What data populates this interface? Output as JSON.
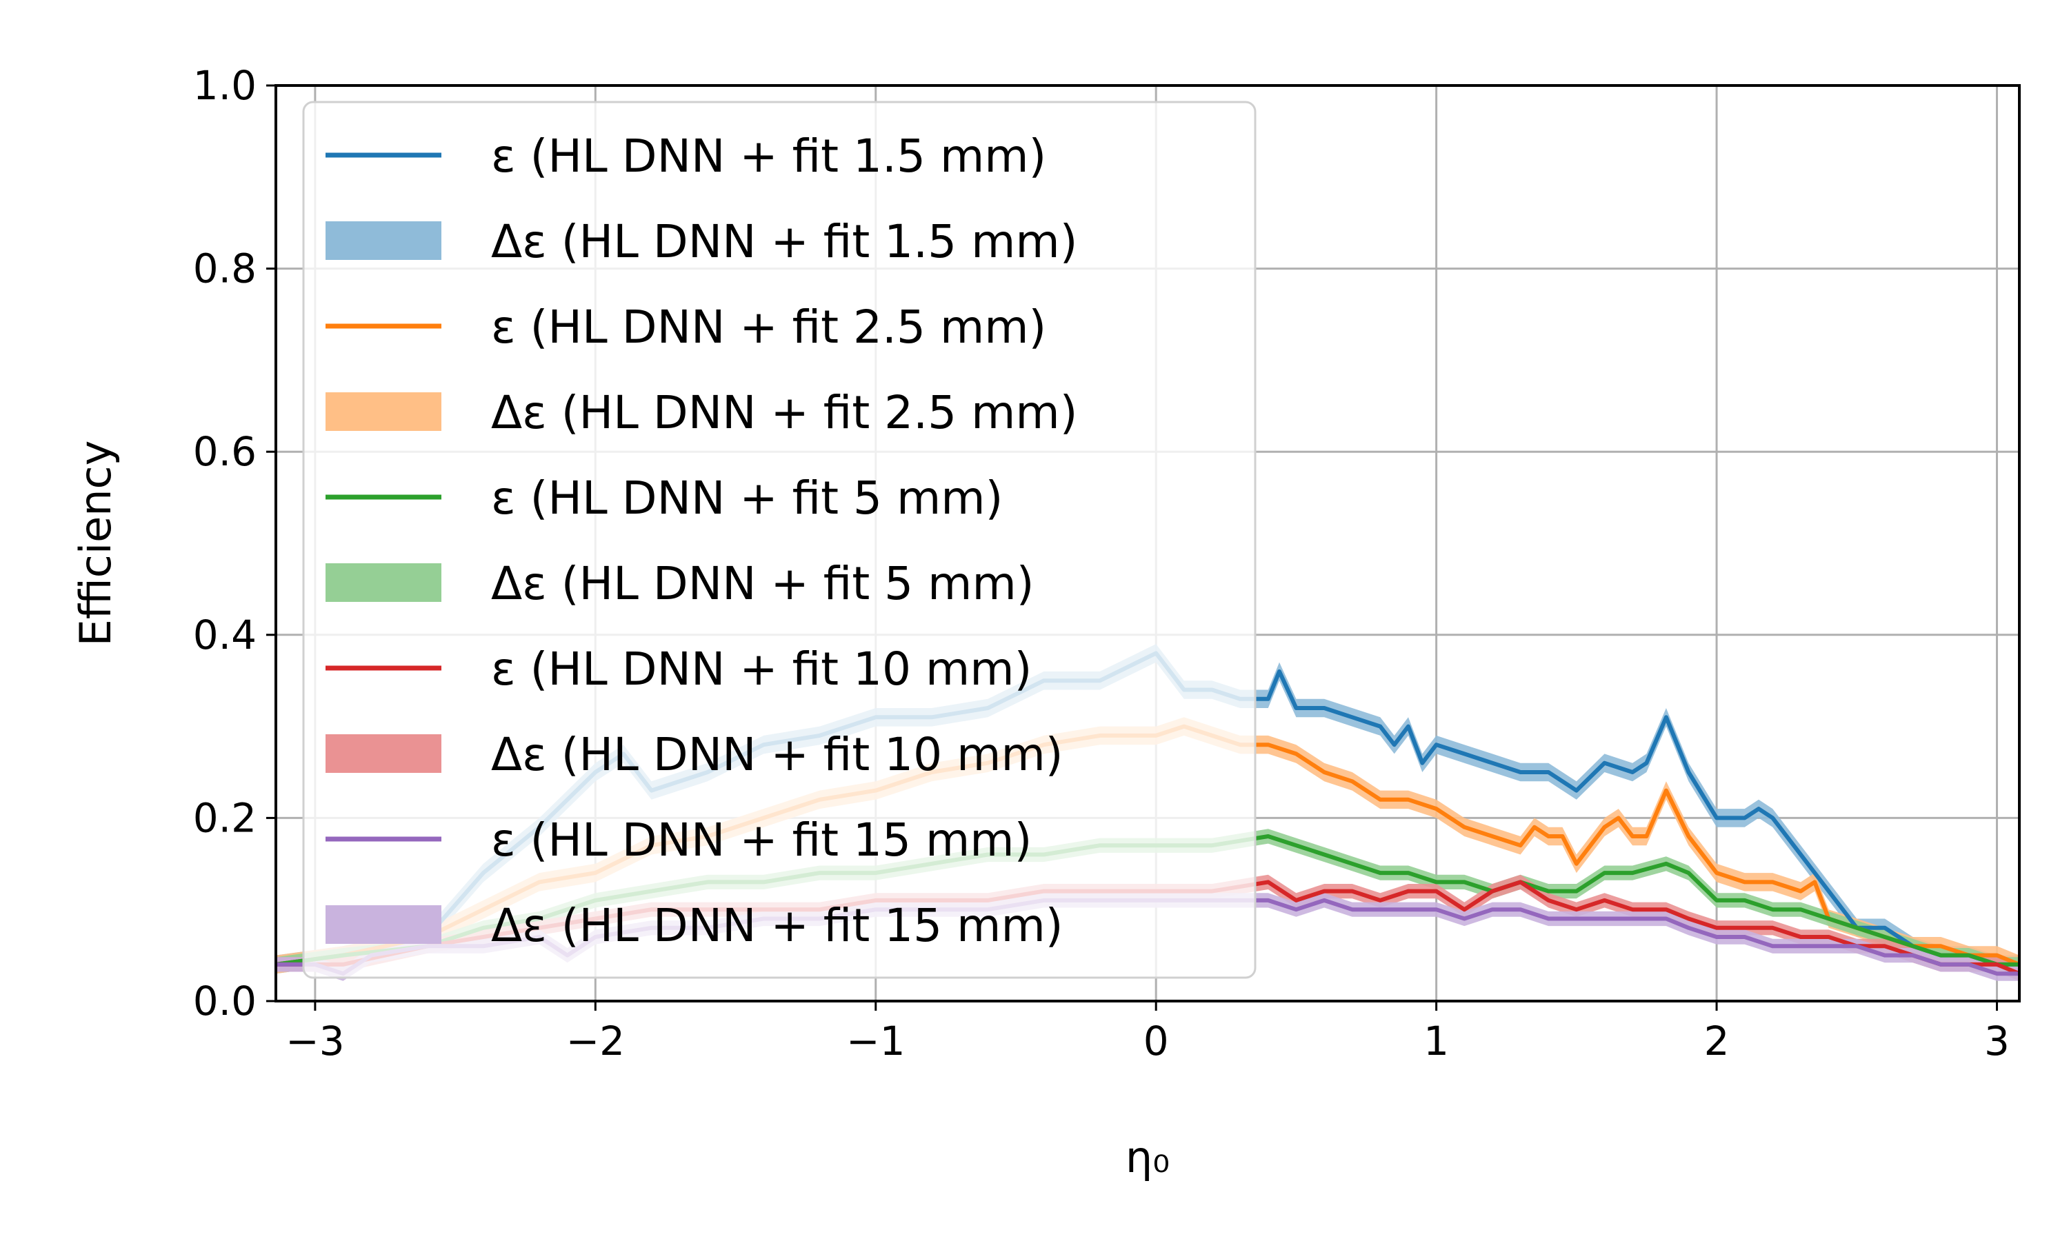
{
  "chart_data": {
    "type": "line",
    "xlabel": "η₀",
    "ylabel": "Efficiency",
    "xlim": [
      -3.14,
      3.08
    ],
    "ylim": [
      0.0,
      1.0
    ],
    "x_ticks": [
      -3,
      -2,
      -1,
      0,
      1,
      2,
      3
    ],
    "x_tick_labels": [
      "−3",
      "−2",
      "−1",
      "0",
      "1",
      "2",
      "3"
    ],
    "y_ticks": [
      0.0,
      0.2,
      0.4,
      0.6,
      0.8,
      1.0
    ],
    "y_tick_labels": [
      "0.0",
      "0.2",
      "0.4",
      "0.6",
      "0.8",
      "1.0"
    ],
    "grid": true,
    "legend_position": "top-left",
    "legend": [
      {
        "label": "ε (HL DNN + fit 1.5 mm)",
        "kind": "line",
        "color": "#1f77b4"
      },
      {
        "label": "Δε (HL DNN + fit 1.5 mm)",
        "kind": "band",
        "color": "#8fbbd9"
      },
      {
        "label": "ε (HL DNN + fit 2.5 mm)",
        "kind": "line",
        "color": "#ff7f0e"
      },
      {
        "label": "Δε (HL DNN + fit 2.5 mm)",
        "kind": "band",
        "color": "#ffbf86"
      },
      {
        "label": "ε (HL DNN + fit 5 mm)",
        "kind": "line",
        "color": "#2ca02c"
      },
      {
        "label": "Δε (HL DNN + fit 5 mm)",
        "kind": "band",
        "color": "#95cf95"
      },
      {
        "label": "ε (HL DNN + fit 10 mm)",
        "kind": "line",
        "color": "#d62728"
      },
      {
        "label": "Δε (HL DNN + fit 10 mm)",
        "kind": "band",
        "color": "#ea9293"
      },
      {
        "label": "ε (HL DNN + fit 15 mm)",
        "kind": "line",
        "color": "#9467bd"
      },
      {
        "label": "Δε (HL DNN + fit 15 mm)",
        "kind": "band",
        "color": "#c9b3de"
      }
    ],
    "series": [
      {
        "name": "ε (HL DNN + fit 1.5 mm)",
        "color": "#1f77b4",
        "band_color": "#8fbbd9",
        "band_halfwidth": 0.01,
        "points": [
          [
            -3.14,
            0.04
          ],
          [
            -2.9,
            0.05
          ],
          [
            -2.6,
            0.07
          ],
          [
            -2.4,
            0.14
          ],
          [
            -2.2,
            0.19
          ],
          [
            -2.0,
            0.25
          ],
          [
            -1.9,
            0.27
          ],
          [
            -1.8,
            0.23
          ],
          [
            -1.6,
            0.25
          ],
          [
            -1.4,
            0.28
          ],
          [
            -1.2,
            0.29
          ],
          [
            -1.0,
            0.31
          ],
          [
            -0.8,
            0.31
          ],
          [
            -0.6,
            0.32
          ],
          [
            -0.4,
            0.35
          ],
          [
            -0.2,
            0.35
          ],
          [
            0.0,
            0.38
          ],
          [
            0.1,
            0.34
          ],
          [
            0.2,
            0.34
          ],
          [
            0.3,
            0.33
          ],
          [
            0.4,
            0.33
          ],
          [
            0.44,
            0.36
          ],
          [
            0.5,
            0.32
          ],
          [
            0.6,
            0.32
          ],
          [
            0.7,
            0.31
          ],
          [
            0.8,
            0.3
          ],
          [
            0.85,
            0.28
          ],
          [
            0.9,
            0.3
          ],
          [
            0.95,
            0.26
          ],
          [
            1.0,
            0.28
          ],
          [
            1.1,
            0.27
          ],
          [
            1.2,
            0.26
          ],
          [
            1.3,
            0.25
          ],
          [
            1.4,
            0.25
          ],
          [
            1.5,
            0.23
          ],
          [
            1.6,
            0.26
          ],
          [
            1.7,
            0.25
          ],
          [
            1.75,
            0.26
          ],
          [
            1.82,
            0.31
          ],
          [
            1.9,
            0.25
          ],
          [
            2.0,
            0.2
          ],
          [
            2.1,
            0.2
          ],
          [
            2.15,
            0.21
          ],
          [
            2.2,
            0.2
          ],
          [
            2.3,
            0.16
          ],
          [
            2.4,
            0.12
          ],
          [
            2.5,
            0.08
          ],
          [
            2.6,
            0.08
          ],
          [
            2.7,
            0.06
          ],
          [
            2.8,
            0.05
          ],
          [
            2.9,
            0.05
          ],
          [
            3.0,
            0.04
          ],
          [
            3.08,
            0.04
          ]
        ]
      },
      {
        "name": "ε (HL DNN + fit 2.5 mm)",
        "color": "#ff7f0e",
        "band_color": "#ffbf86",
        "band_halfwidth": 0.01,
        "points": [
          [
            -3.14,
            0.04
          ],
          [
            -2.9,
            0.05
          ],
          [
            -2.6,
            0.07
          ],
          [
            -2.4,
            0.1
          ],
          [
            -2.2,
            0.13
          ],
          [
            -2.0,
            0.14
          ],
          [
            -1.8,
            0.17
          ],
          [
            -1.6,
            0.18
          ],
          [
            -1.4,
            0.2
          ],
          [
            -1.2,
            0.22
          ],
          [
            -1.0,
            0.23
          ],
          [
            -0.8,
            0.25
          ],
          [
            -0.6,
            0.26
          ],
          [
            -0.4,
            0.28
          ],
          [
            -0.2,
            0.29
          ],
          [
            0.0,
            0.29
          ],
          [
            0.1,
            0.3
          ],
          [
            0.2,
            0.29
          ],
          [
            0.3,
            0.28
          ],
          [
            0.4,
            0.28
          ],
          [
            0.5,
            0.27
          ],
          [
            0.6,
            0.25
          ],
          [
            0.7,
            0.24
          ],
          [
            0.8,
            0.22
          ],
          [
            0.9,
            0.22
          ],
          [
            1.0,
            0.21
          ],
          [
            1.1,
            0.19
          ],
          [
            1.2,
            0.18
          ],
          [
            1.3,
            0.17
          ],
          [
            1.35,
            0.19
          ],
          [
            1.4,
            0.18
          ],
          [
            1.45,
            0.18
          ],
          [
            1.5,
            0.15
          ],
          [
            1.6,
            0.19
          ],
          [
            1.65,
            0.2
          ],
          [
            1.7,
            0.18
          ],
          [
            1.75,
            0.18
          ],
          [
            1.82,
            0.23
          ],
          [
            1.9,
            0.18
          ],
          [
            2.0,
            0.14
          ],
          [
            2.1,
            0.13
          ],
          [
            2.2,
            0.13
          ],
          [
            2.3,
            0.12
          ],
          [
            2.35,
            0.13
          ],
          [
            2.4,
            0.09
          ],
          [
            2.5,
            0.08
          ],
          [
            2.6,
            0.07
          ],
          [
            2.7,
            0.06
          ],
          [
            2.8,
            0.06
          ],
          [
            2.9,
            0.05
          ],
          [
            3.0,
            0.05
          ],
          [
            3.08,
            0.04
          ]
        ]
      },
      {
        "name": "ε (HL DNN + fit 5 mm)",
        "color": "#2ca02c",
        "band_color": "#95cf95",
        "band_halfwidth": 0.008,
        "points": [
          [
            -3.14,
            0.04
          ],
          [
            -2.9,
            0.05
          ],
          [
            -2.6,
            0.06
          ],
          [
            -2.4,
            0.08
          ],
          [
            -2.2,
            0.09
          ],
          [
            -2.0,
            0.11
          ],
          [
            -1.8,
            0.12
          ],
          [
            -1.6,
            0.13
          ],
          [
            -1.4,
            0.13
          ],
          [
            -1.2,
            0.14
          ],
          [
            -1.0,
            0.14
          ],
          [
            -0.8,
            0.15
          ],
          [
            -0.6,
            0.16
          ],
          [
            -0.4,
            0.16
          ],
          [
            -0.2,
            0.17
          ],
          [
            0.0,
            0.17
          ],
          [
            0.2,
            0.17
          ],
          [
            0.4,
            0.18
          ],
          [
            0.5,
            0.17
          ],
          [
            0.6,
            0.16
          ],
          [
            0.7,
            0.15
          ],
          [
            0.8,
            0.14
          ],
          [
            0.9,
            0.14
          ],
          [
            1.0,
            0.13
          ],
          [
            1.1,
            0.13
          ],
          [
            1.2,
            0.12
          ],
          [
            1.3,
            0.13
          ],
          [
            1.4,
            0.12
          ],
          [
            1.5,
            0.12
          ],
          [
            1.6,
            0.14
          ],
          [
            1.7,
            0.14
          ],
          [
            1.82,
            0.15
          ],
          [
            1.9,
            0.14
          ],
          [
            2.0,
            0.11
          ],
          [
            2.1,
            0.11
          ],
          [
            2.2,
            0.1
          ],
          [
            2.3,
            0.1
          ],
          [
            2.4,
            0.09
          ],
          [
            2.5,
            0.08
          ],
          [
            2.6,
            0.07
          ],
          [
            2.7,
            0.06
          ],
          [
            2.8,
            0.05
          ],
          [
            2.9,
            0.05
          ],
          [
            3.0,
            0.04
          ],
          [
            3.08,
            0.04
          ]
        ]
      },
      {
        "name": "ε (HL DNN + fit 10 mm)",
        "color": "#d62728",
        "band_color": "#ea9293",
        "band_halfwidth": 0.008,
        "points": [
          [
            -3.14,
            0.04
          ],
          [
            -2.9,
            0.04
          ],
          [
            -2.6,
            0.06
          ],
          [
            -2.4,
            0.07
          ],
          [
            -2.2,
            0.08
          ],
          [
            -2.0,
            0.09
          ],
          [
            -1.8,
            0.1
          ],
          [
            -1.6,
            0.1
          ],
          [
            -1.4,
            0.1
          ],
          [
            -1.2,
            0.1
          ],
          [
            -1.0,
            0.11
          ],
          [
            -0.8,
            0.11
          ],
          [
            -0.6,
            0.11
          ],
          [
            -0.4,
            0.12
          ],
          [
            -0.2,
            0.12
          ],
          [
            0.0,
            0.12
          ],
          [
            0.2,
            0.12
          ],
          [
            0.4,
            0.13
          ],
          [
            0.5,
            0.11
          ],
          [
            0.6,
            0.12
          ],
          [
            0.7,
            0.12
          ],
          [
            0.8,
            0.11
          ],
          [
            0.9,
            0.12
          ],
          [
            1.0,
            0.12
          ],
          [
            1.1,
            0.1
          ],
          [
            1.2,
            0.12
          ],
          [
            1.3,
            0.13
          ],
          [
            1.4,
            0.11
          ],
          [
            1.5,
            0.1
          ],
          [
            1.6,
            0.11
          ],
          [
            1.7,
            0.1
          ],
          [
            1.82,
            0.1
          ],
          [
            1.9,
            0.09
          ],
          [
            2.0,
            0.08
          ],
          [
            2.1,
            0.08
          ],
          [
            2.2,
            0.08
          ],
          [
            2.3,
            0.07
          ],
          [
            2.4,
            0.07
          ],
          [
            2.5,
            0.06
          ],
          [
            2.6,
            0.06
          ],
          [
            2.7,
            0.05
          ],
          [
            2.8,
            0.04
          ],
          [
            2.9,
            0.04
          ],
          [
            3.0,
            0.04
          ],
          [
            3.08,
            0.03
          ]
        ]
      },
      {
        "name": "ε (HL DNN + fit 15 mm)",
        "color": "#9467bd",
        "band_color": "#c9b3de",
        "band_halfwidth": 0.008,
        "points": [
          [
            -3.14,
            0.04
          ],
          [
            -3.0,
            0.04
          ],
          [
            -2.9,
            0.03
          ],
          [
            -2.8,
            0.05
          ],
          [
            -2.6,
            0.06
          ],
          [
            -2.4,
            0.06
          ],
          [
            -2.2,
            0.07
          ],
          [
            -2.1,
            0.05
          ],
          [
            -2.0,
            0.07
          ],
          [
            -1.8,
            0.08
          ],
          [
            -1.6,
            0.08
          ],
          [
            -1.4,
            0.09
          ],
          [
            -1.2,
            0.09
          ],
          [
            -1.0,
            0.1
          ],
          [
            -0.8,
            0.1
          ],
          [
            -0.6,
            0.1
          ],
          [
            -0.4,
            0.11
          ],
          [
            -0.2,
            0.11
          ],
          [
            0.0,
            0.11
          ],
          [
            0.2,
            0.11
          ],
          [
            0.4,
            0.11
          ],
          [
            0.5,
            0.1
          ],
          [
            0.6,
            0.11
          ],
          [
            0.7,
            0.1
          ],
          [
            0.8,
            0.1
          ],
          [
            0.9,
            0.1
          ],
          [
            1.0,
            0.1
          ],
          [
            1.1,
            0.09
          ],
          [
            1.2,
            0.1
          ],
          [
            1.3,
            0.1
          ],
          [
            1.4,
            0.09
          ],
          [
            1.5,
            0.09
          ],
          [
            1.6,
            0.09
          ],
          [
            1.7,
            0.09
          ],
          [
            1.82,
            0.09
          ],
          [
            1.9,
            0.08
          ],
          [
            2.0,
            0.07
          ],
          [
            2.1,
            0.07
          ],
          [
            2.2,
            0.06
          ],
          [
            2.3,
            0.06
          ],
          [
            2.4,
            0.06
          ],
          [
            2.5,
            0.06
          ],
          [
            2.6,
            0.05
          ],
          [
            2.7,
            0.05
          ],
          [
            2.8,
            0.04
          ],
          [
            2.9,
            0.04
          ],
          [
            3.0,
            0.03
          ],
          [
            3.08,
            0.03
          ]
        ]
      }
    ]
  }
}
